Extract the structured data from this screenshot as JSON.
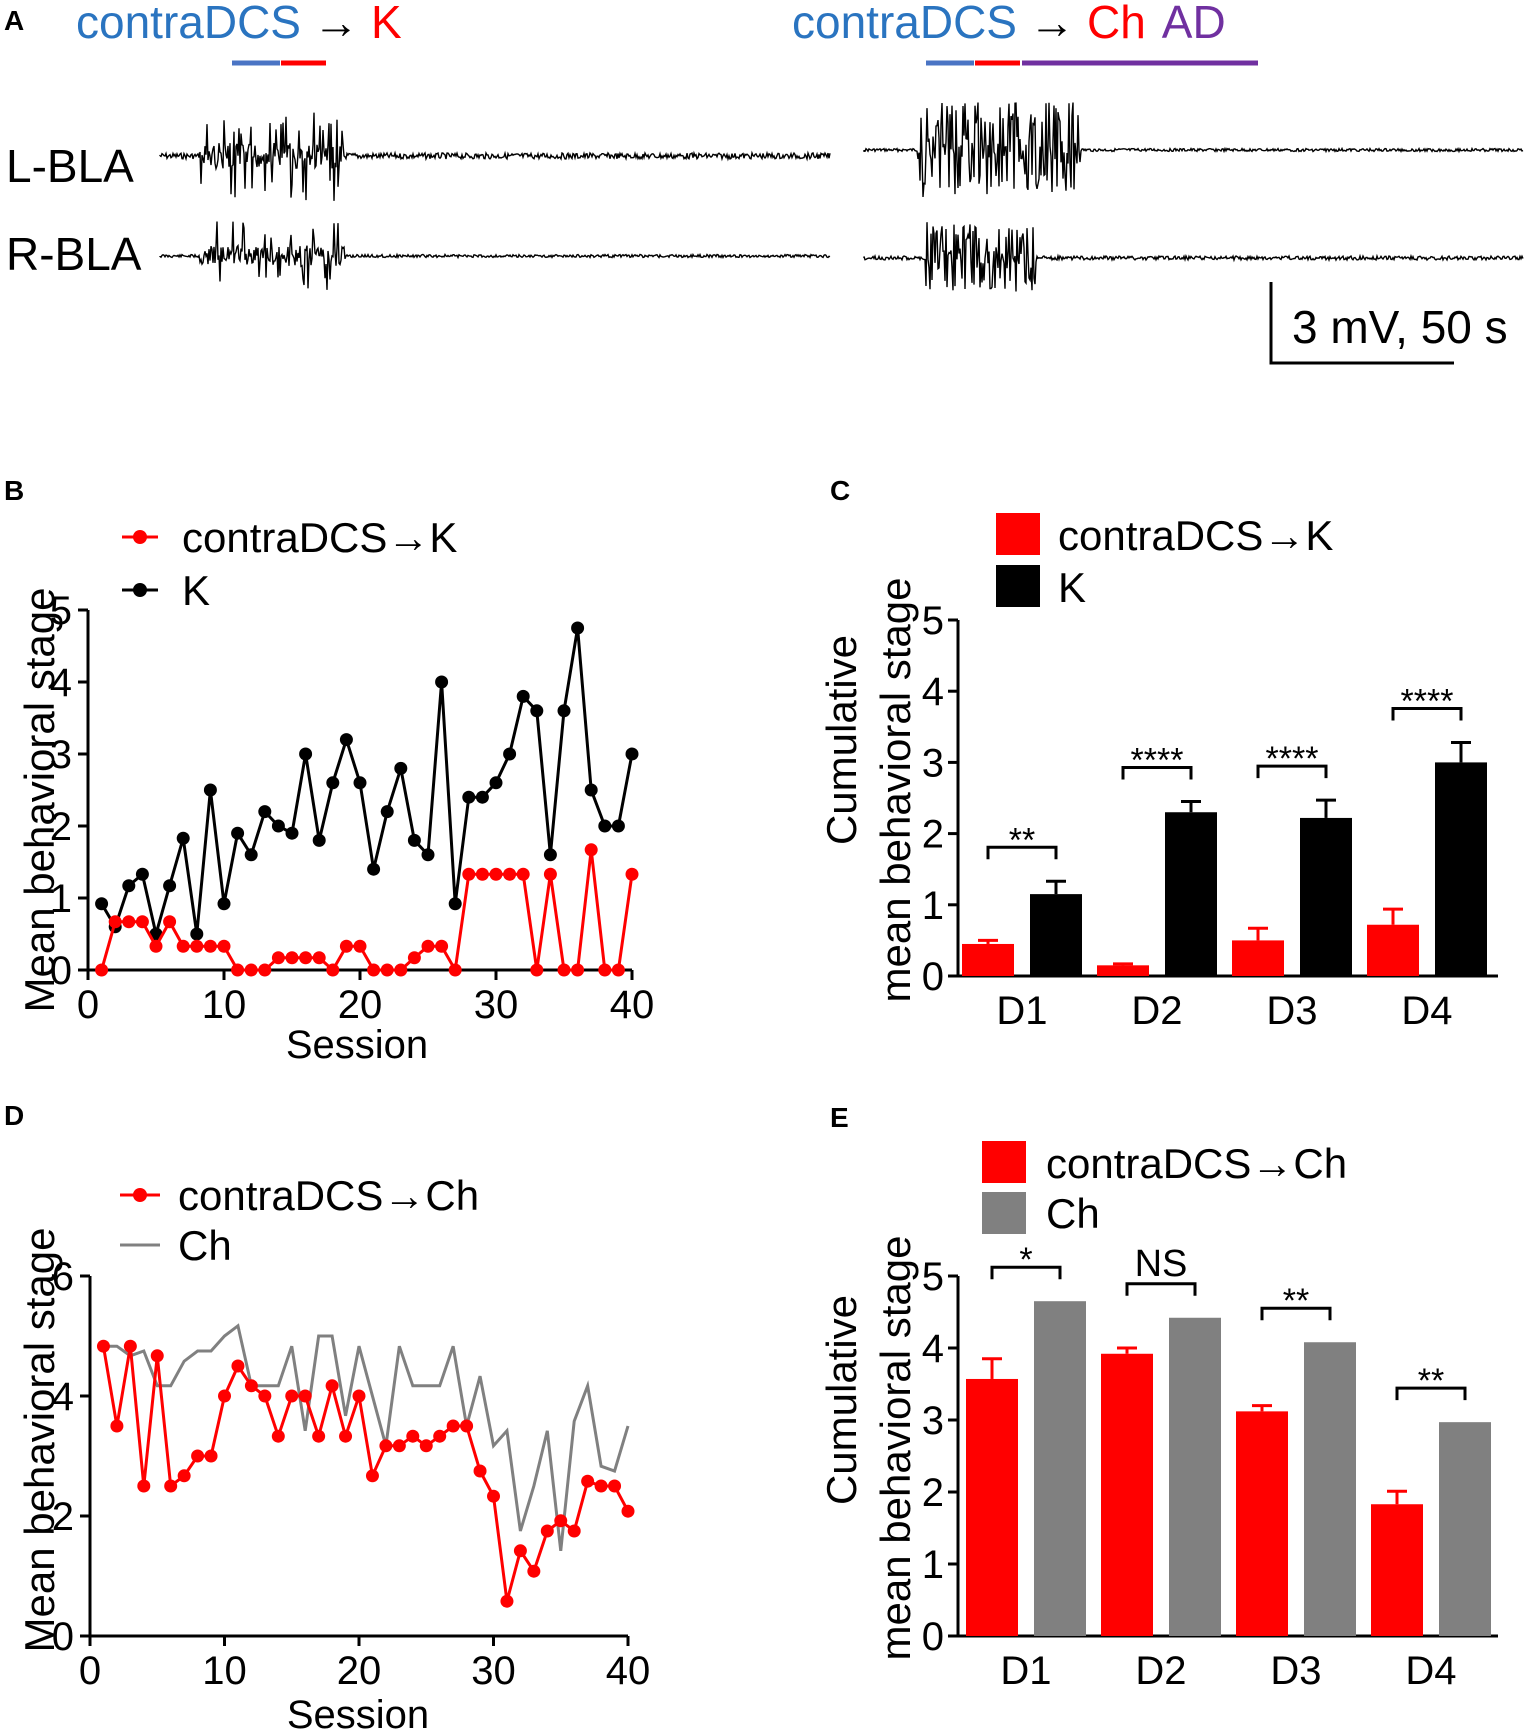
{
  "panel_a": {
    "letter": "A",
    "left_label_prefix": "contraDCS",
    "left_label_arrow": "→",
    "left_label_target": "K",
    "right_label_prefix": "contraDCS",
    "right_label_arrow": "→",
    "right_label_target": "Ch",
    "right_label_extra": "AD",
    "trace_top_label": "L-BLA",
    "trace_bottom_label": "R-BLA",
    "scale_label": "3 mV, 50 s"
  },
  "colors": {
    "red": "#ff0000",
    "blue": "#2a74c0",
    "purple": "#7030a0",
    "black": "#000000",
    "gray": "#808080"
  },
  "chart_data": [
    {
      "id": "B",
      "letter": "B",
      "type": "line",
      "title": "",
      "xlabel": "Session",
      "ylabel": "Mean behavioral stage",
      "xlim": [
        0,
        40
      ],
      "ylim": [
        0,
        5
      ],
      "xticks": [
        "0",
        "10",
        "20",
        "30",
        "40"
      ],
      "yticks": [
        "0",
        "1",
        "2",
        "3",
        "4",
        "5"
      ],
      "legend": [
        "contraDCS→K",
        "K"
      ],
      "x": [
        1,
        2,
        3,
        4,
        5,
        6,
        7,
        8,
        9,
        10,
        11,
        12,
        13,
        14,
        15,
        16,
        17,
        18,
        19,
        20,
        21,
        22,
        23,
        24,
        25,
        26,
        27,
        28,
        29,
        30,
        31,
        32,
        33,
        34,
        35,
        36,
        37,
        38,
        39,
        40
      ],
      "series": [
        {
          "name": "contraDCS→K",
          "color": "#ff0000",
          "markers": true,
          "values": [
            0,
            0.67,
            0.67,
            0.67,
            0.33,
            0.67,
            0.33,
            0.33,
            0.33,
            0.33,
            0,
            0,
            0,
            0.17,
            0.17,
            0.17,
            0.17,
            0,
            0.33,
            0.33,
            0,
            0,
            0,
            0.17,
            0.33,
            0.33,
            0,
            1.33,
            1.33,
            1.33,
            1.33,
            1.33,
            0,
            1.33,
            0,
            0,
            1.67,
            0,
            0,
            1.33
          ]
        },
        {
          "name": "K",
          "color": "#000000",
          "markers": true,
          "values": [
            0.92,
            0.6,
            1.17,
            1.33,
            0.5,
            1.17,
            1.83,
            0.5,
            2.5,
            0.92,
            1.9,
            1.6,
            2.2,
            2.0,
            1.9,
            3.0,
            1.8,
            2.6,
            3.2,
            2.6,
            1.4,
            2.2,
            2.8,
            1.8,
            1.6,
            4.0,
            0.92,
            2.4,
            2.4,
            2.6,
            3.0,
            3.8,
            3.6,
            1.6,
            3.6,
            4.75,
            2.5,
            2.0,
            2.0,
            3.0
          ]
        }
      ]
    },
    {
      "id": "C",
      "letter": "C",
      "type": "bar",
      "title": "",
      "xlabel": "",
      "ylabel_line1": "Cumulative",
      "ylabel_line2": "mean behavioral stage",
      "ylim": [
        0,
        5
      ],
      "yticks": [
        "0",
        "1",
        "2",
        "3",
        "4",
        "5"
      ],
      "categories": [
        "D1",
        "D2",
        "D3",
        "D4"
      ],
      "legend": [
        "contraDCS→K",
        "K"
      ],
      "significance": [
        "**",
        "****",
        "****",
        "****"
      ],
      "series": [
        {
          "name": "contraDCS→K",
          "color": "#ff0000",
          "values": [
            0.45,
            0.15,
            0.5,
            0.72
          ],
          "errors": [
            0.05,
            0.02,
            0.17,
            0.22
          ]
        },
        {
          "name": "K",
          "color": "#000000",
          "values": [
            1.15,
            2.3,
            2.22,
            3.0
          ],
          "errors": [
            0.18,
            0.15,
            0.25,
            0.28
          ]
        }
      ]
    },
    {
      "id": "D",
      "letter": "D",
      "type": "line",
      "title": "",
      "xlabel": "Session",
      "ylabel": "Mean behavioral stage",
      "xlim": [
        0,
        40
      ],
      "ylim": [
        0,
        6
      ],
      "xticks": [
        "0",
        "10",
        "20",
        "30",
        "40"
      ],
      "yticks": [
        "0",
        "2",
        "4",
        "6"
      ],
      "legend": [
        "contraDCS→Ch",
        "Ch"
      ],
      "x": [
        1,
        2,
        3,
        4,
        5,
        6,
        7,
        8,
        9,
        10,
        11,
        12,
        13,
        14,
        15,
        16,
        17,
        18,
        19,
        20,
        21,
        22,
        23,
        24,
        25,
        26,
        27,
        28,
        29,
        30,
        31,
        32,
        33,
        34,
        35,
        36,
        37,
        38,
        39,
        40
      ],
      "series": [
        {
          "name": "contraDCS→Ch",
          "color": "#ff0000",
          "markers": true,
          "values": [
            4.83,
            3.5,
            4.83,
            2.5,
            4.67,
            2.5,
            2.67,
            3.0,
            3.0,
            4.0,
            4.5,
            4.17,
            4.0,
            3.33,
            4.0,
            4.0,
            3.33,
            4.17,
            3.33,
            4.0,
            2.67,
            3.17,
            3.17,
            3.33,
            3.17,
            3.33,
            3.5,
            3.5,
            2.75,
            2.33,
            0.58,
            1.42,
            1.08,
            1.75,
            1.92,
            1.75,
            2.58,
            2.5,
            2.5,
            2.08
          ]
        },
        {
          "name": "Ch",
          "color": "#808080",
          "markers": false,
          "values": [
            4.83,
            4.83,
            4.67,
            4.75,
            4.17,
            4.17,
            4.58,
            4.75,
            4.75,
            5.0,
            5.17,
            4.17,
            4.17,
            4.17,
            4.83,
            3.42,
            5.0,
            5.0,
            3.67,
            4.83,
            4.0,
            3.17,
            4.83,
            4.17,
            4.17,
            4.17,
            4.83,
            3.5,
            4.33,
            3.17,
            3.42,
            1.75,
            2.5,
            3.42,
            1.42,
            3.58,
            4.17,
            2.83,
            2.75,
            3.5
          ]
        }
      ]
    },
    {
      "id": "E",
      "letter": "E",
      "type": "bar",
      "title": "",
      "xlabel": "",
      "ylabel_line1": "Cumulative",
      "ylabel_line2": "mean behavioral stage",
      "ylim": [
        0,
        5
      ],
      "yticks": [
        "0",
        "1",
        "2",
        "3",
        "4",
        "5"
      ],
      "categories": [
        "D1",
        "D2",
        "D3",
        "D4"
      ],
      "legend": [
        "contraDCS→Ch",
        "Ch"
      ],
      "significance": [
        "*",
        "NS",
        "**",
        "**"
      ],
      "series": [
        {
          "name": "contraDCS→Ch",
          "color": "#ff0000",
          "values": [
            3.57,
            3.92,
            3.12,
            1.83
          ],
          "errors": [
            0.28,
            0.08,
            0.08,
            0.18
          ]
        },
        {
          "name": "Ch",
          "color": "#808080",
          "values": [
            4.65,
            4.42,
            4.08,
            2.97
          ],
          "errors": [
            0,
            0,
            0,
            0
          ]
        }
      ]
    }
  ]
}
